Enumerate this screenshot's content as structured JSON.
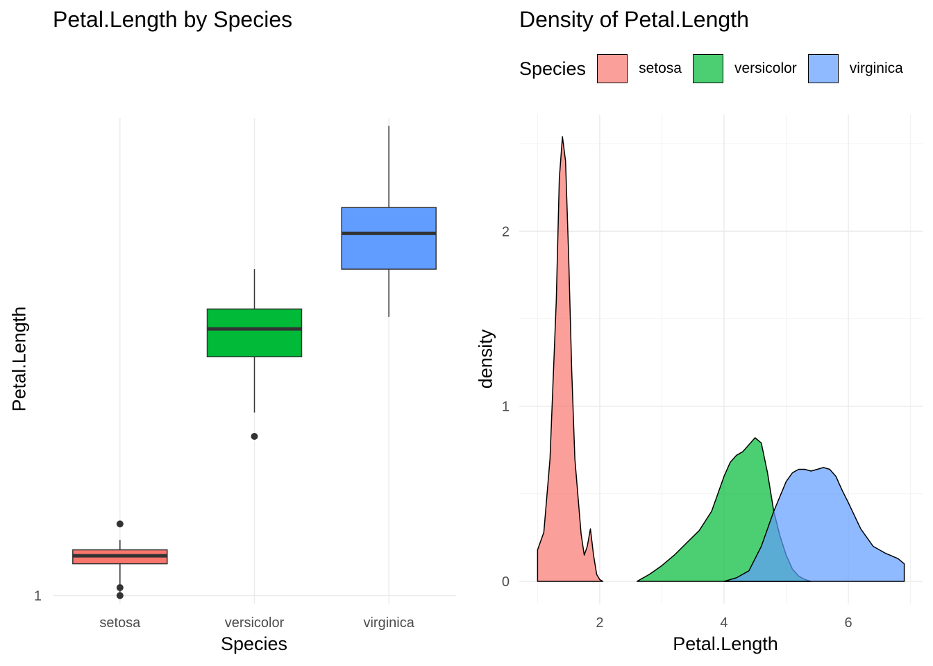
{
  "chart_data": [
    {
      "type": "boxplot",
      "title": "Petal.Length by Species",
      "xlabel": "Species",
      "ylabel": "Petal.Length",
      "categories": [
        "setosa",
        "versicolor",
        "virginica"
      ],
      "y_ticks": [
        {
          "value": 1,
          "label": "1"
        }
      ],
      "grid": true,
      "series": [
        {
          "name": "setosa",
          "color": "#F8766D",
          "whisker_low": 1.0,
          "q1": 1.4,
          "median": 1.5,
          "q3": 1.575,
          "whisker_high": 1.7,
          "outliers": [
            1.0,
            1.1,
            1.9
          ]
        },
        {
          "name": "versicolor",
          "color": "#00BA38",
          "whisker_low": 3.3,
          "q1": 4.0,
          "median": 4.35,
          "q3": 4.6,
          "whisker_high": 5.1,
          "outliers": [
            3.0
          ]
        },
        {
          "name": "virginica",
          "color": "#619CFF",
          "whisker_low": 4.5,
          "q1": 5.1,
          "median": 5.55,
          "q3": 5.875,
          "whisker_high": 6.9,
          "outliers": []
        }
      ]
    },
    {
      "type": "area",
      "title": "Density of Petal.Length",
      "xlabel": "Petal.Length",
      "ylabel": "density",
      "xlim": [
        1.0,
        6.9
      ],
      "ylim": [
        0,
        2.54
      ],
      "x_ticks": [
        {
          "value": 2,
          "label": "2"
        },
        {
          "value": 4,
          "label": "4"
        },
        {
          "value": 6,
          "label": "6"
        }
      ],
      "y_ticks": [
        {
          "value": 0,
          "label": "0"
        },
        {
          "value": 1,
          "label": "1"
        },
        {
          "value": 2,
          "label": "2"
        }
      ],
      "grid": true,
      "legend": {
        "title": "Species",
        "position": "top"
      },
      "series": [
        {
          "name": "setosa",
          "color": "#F8766D",
          "alpha": 0.7,
          "x": [
            1.0,
            1.1,
            1.2,
            1.3,
            1.35,
            1.4,
            1.45,
            1.5,
            1.55,
            1.6,
            1.7,
            1.75,
            1.8,
            1.85,
            1.9,
            1.95,
            2.0,
            2.05
          ],
          "y": [
            0.18,
            0.28,
            0.7,
            1.6,
            2.3,
            2.54,
            2.4,
            1.85,
            1.2,
            0.7,
            0.27,
            0.15,
            0.2,
            0.3,
            0.15,
            0.04,
            0.01,
            0.0
          ]
        },
        {
          "name": "versicolor",
          "color": "#00BA38",
          "alpha": 0.7,
          "x": [
            2.6,
            2.8,
            3.0,
            3.2,
            3.4,
            3.6,
            3.8,
            4.0,
            4.1,
            4.2,
            4.3,
            4.4,
            4.5,
            4.6,
            4.7,
            4.8,
            4.9,
            5.0,
            5.1,
            5.2,
            5.3,
            5.4
          ],
          "y": [
            0.0,
            0.04,
            0.09,
            0.15,
            0.22,
            0.29,
            0.4,
            0.6,
            0.68,
            0.72,
            0.74,
            0.78,
            0.82,
            0.79,
            0.62,
            0.4,
            0.26,
            0.15,
            0.07,
            0.03,
            0.01,
            0.0
          ]
        },
        {
          "name": "virginica",
          "color": "#619CFF",
          "alpha": 0.7,
          "x": [
            4.0,
            4.2,
            4.4,
            4.6,
            4.8,
            5.0,
            5.1,
            5.2,
            5.3,
            5.4,
            5.5,
            5.6,
            5.7,
            5.8,
            5.9,
            6.0,
            6.2,
            6.4,
            6.6,
            6.8,
            6.9
          ],
          "y": [
            0.0,
            0.02,
            0.06,
            0.2,
            0.4,
            0.57,
            0.62,
            0.64,
            0.64,
            0.63,
            0.64,
            0.65,
            0.64,
            0.6,
            0.52,
            0.45,
            0.3,
            0.2,
            0.16,
            0.13,
            0.1
          ]
        }
      ]
    }
  ]
}
